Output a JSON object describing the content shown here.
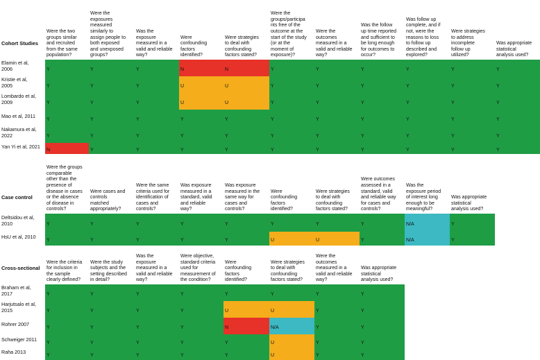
{
  "colors": {
    "green": "#1f9d45",
    "orange": "#f5ad1b",
    "red": "#e63228",
    "blue": "#3cb9c2"
  },
  "sections": [
    {
      "title": "Cohort Studies",
      "questions": [
        "Were the two\ngroups similar\nand recruited\nfrom the same\npopulation?",
        "Were the\nexposures\nmeasured\nsimilarly to\nassign people to\nboth exposed\nand unexposed\ngroups?",
        "Was the\nexposure\nmeasured in a\nvalid and reliable\nway?",
        "Were\nconfounding\nfactors\nidentified?",
        "Were strategies\nto deal with\nconfounding\nfactors stated?",
        "Were the\ngroups/participa\nnts free of the\noutcome at the\nstart of the study\n(or at the\nmoment of\nexposure)?",
        "Were the\noutcomes\nmeasured in a\nvalid and reliable\nway?",
        "Was the follow\nup time reported\nand sufficient to\nbe long enough\nfor outcomes to\noccur?",
        "Was follow up\ncomplete, and if\nnot, were the\nreasons to loss\nto follow up\ndescribed and\nexplored?",
        "Were strategies\nto address\nincomplete\nfollow up\nutilized?",
        "Was appropriate\nstatistical\nanalysis used?"
      ],
      "rows": [
        {
          "study": "Elamin et al,\n2006",
          "values": [
            "Y",
            "Y",
            "Y",
            "N",
            "N",
            "Y",
            "Y",
            "Y",
            "Y",
            "Y",
            "Y"
          ]
        },
        {
          "study": "Kristie et al,\n2005",
          "values": [
            "Y",
            "Y",
            "Y",
            "U",
            "U",
            "Y",
            "Y",
            "Y",
            "Y",
            "Y",
            "Y"
          ]
        },
        {
          "study": "Lombardo et al,\n2009",
          "values": [
            "Y",
            "Y",
            "Y",
            "U",
            "U",
            "Y",
            "Y",
            "Y",
            "Y",
            "Y",
            "Y"
          ]
        },
        {
          "study": "Mao et al, 2011",
          "values": [
            "Y",
            "Y",
            "Y",
            "Y",
            "Y",
            "Y",
            "Y",
            "Y",
            "Y",
            "Y",
            "Y"
          ]
        },
        {
          "study": "Nakamura et al,\n2022",
          "values": [
            "Y",
            "Y",
            "Y",
            "Y",
            "Y",
            "Y",
            "Y",
            "Y",
            "Y",
            "Y",
            "Y"
          ]
        },
        {
          "study": "Yan Yi et al, 2021",
          "values": [
            "N",
            "Y",
            "Y",
            "Y",
            "Y",
            "Y",
            "Y",
            "Y",
            "Y",
            "Y",
            "Y"
          ]
        }
      ]
    },
    {
      "title": "Case control",
      "questions": [
        "Were the groups\ncomparable\nother than the\npresence of\ndisease in cases\nor the absence\nof disease in\ncontrols?",
        "Were cases and\ncontrols\nmatched\nappropriately?",
        "Were the same\ncriteria used for\nidentification of\ncases and\ncontrols?",
        "Was exposure\nmeasured in a\nstandard, valid\nand reliable\nway?",
        "Was exposure\nmeasured in the\nsame way for\ncases and\ncontrols?",
        "Were\nconfounding\nfactors\nidentified?",
        "Were strategies\nto deal with\nconfounding\nfactors stated?",
        "Were outcomes\nassessed in a\nstandard, valid\nand reliable way\nfor cases and\ncontrols?",
        "Was the\nexposure period\nof interest long\nenough to be\nmeaningful?",
        "Was appropriate\nstatistical\nanalysis used?"
      ],
      "rows": [
        {
          "study": "Deltsidou et al,\n2010",
          "values": [
            "Y",
            "Y",
            "Y",
            "Y",
            "Y",
            "Y",
            "Y",
            "Y",
            "N/A",
            "Y"
          ]
        },
        {
          "study": "HsU et al, 2010",
          "values": [
            "Y",
            "Y",
            "Y",
            "Y",
            "Y",
            "U",
            "U",
            "Y",
            "N/A",
            "Y"
          ]
        }
      ]
    },
    {
      "title": "Cross-sectional",
      "questions": [
        "Were the criteria\nfor inclusion in\nthe sample\nclearly defined?",
        "Were the study\nsubjects and the\nsetting described\nin detail?",
        "Was the\nexposure\nmeasured in a\nvalid and reliable\nway?",
        "Were objective,\nstandard criteria\nused for\nmeasurement of\nthe condition?",
        "Were\nconfounding\nfactors\nidentified?",
        "Were strategies\nto deal with\nconfounding\nfactors stated?",
        "Were the\noutcomes\nmeasured in a\nvalid and reliable\nway?",
        "Was appropriate\nstatistical\nanalysis used?"
      ],
      "rows": [
        {
          "study": "Braham et al,\n2017",
          "values": [
            "Y",
            "Y",
            "Y",
            "Y",
            "Y",
            "Y",
            "Y",
            "Y"
          ]
        },
        {
          "study": "Harjutsalo et al,\n2015",
          "values": [
            "Y",
            "Y",
            "Y",
            "Y",
            "U",
            "U",
            "Y",
            "Y"
          ]
        },
        {
          "study": "Rohrer 2007",
          "values": [
            "Y",
            "Y",
            "Y",
            "Y",
            "N",
            "N/A",
            "Y",
            "Y"
          ]
        },
        {
          "study": "Schweiger 2011",
          "values": [
            "Y",
            "Y",
            "Y",
            "Y",
            "Y",
            "U",
            "Y",
            "Y"
          ]
        },
        {
          "study": "Raha 2013",
          "values": [
            "Y",
            "Y",
            "Y",
            "Y",
            "Y",
            "U",
            "Y",
            "Y"
          ]
        }
      ]
    }
  ]
}
